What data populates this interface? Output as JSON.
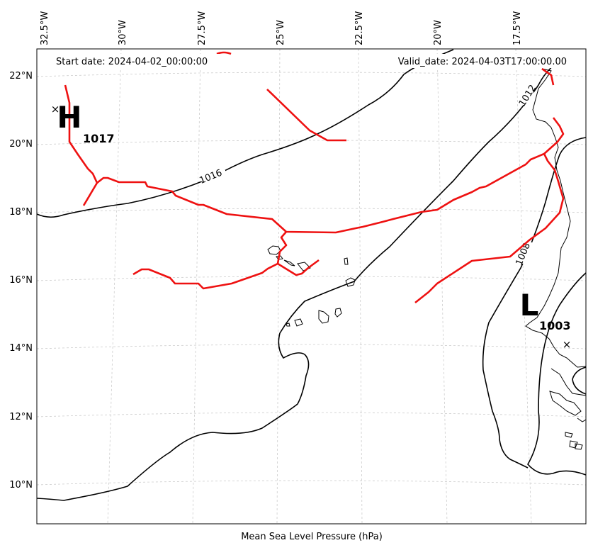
{
  "header": {
    "start_date": "Start date: 2024-04-02_00:00:00",
    "valid_date": "Valid_date: 2024-04-03T17:00:00.00"
  },
  "xlabel": "Mean Sea Level Pressure (hPa)",
  "lon_ticks": [
    "32.5°W",
    "30°W",
    "27.5°W",
    "25°W",
    "22.5°W",
    "20°W",
    "17.5°W"
  ],
  "lat_ticks": [
    "22°N",
    "20°N",
    "18°N",
    "16°N",
    "14°N",
    "12°N",
    "10°N"
  ],
  "pressure_centers": [
    {
      "type": "H",
      "value": "1017"
    },
    {
      "type": "L",
      "value": "1003"
    }
  ],
  "isobar_labels": [
    "1016",
    "1012",
    "1008"
  ],
  "colors": {
    "isobar": "#000000",
    "front": "#ee1111",
    "coast": "#000000",
    "grid": "#cccccc"
  }
}
